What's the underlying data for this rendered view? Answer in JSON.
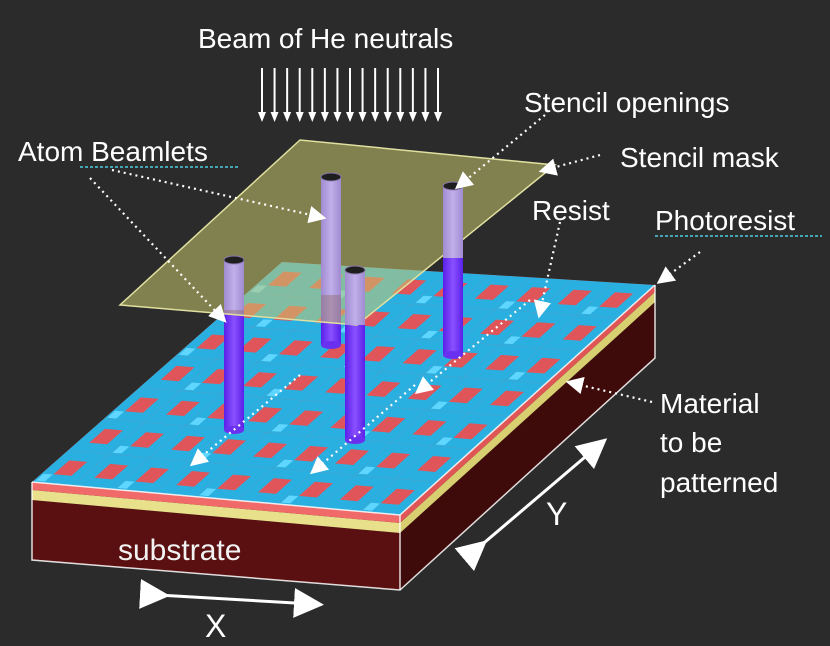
{
  "labels": {
    "beam": "Beam of He neutrals",
    "stencil_openings": "Stencil openings",
    "atom_beamlets": "Atom Beamlets",
    "stencil_mask": "Stencil mask",
    "resist": "Resist",
    "photoresist": "Photoresist",
    "material_line1": "Material",
    "material_line2": "to be",
    "material_line3": "patterned",
    "substrate": "substrate",
    "axis_x": "X",
    "axis_y": "Y"
  },
  "colors": {
    "background": "#2b2b2b",
    "checker_red": "#e0555a",
    "checker_cyan": "#2ab0e0",
    "photoresist_layer": "#f06a6a",
    "material_layer": "#e8e08a",
    "substrate_front": "#5a1010",
    "substrate_side": "#3e0a0a",
    "mask_fill": "#c8c870",
    "beamlet": "#7a3cff",
    "beamlet_cap": "#222222"
  },
  "icons": [
    "down-arrow-icon",
    "dotted-pointer-arrow-icon",
    "double-arrow-icon"
  ]
}
